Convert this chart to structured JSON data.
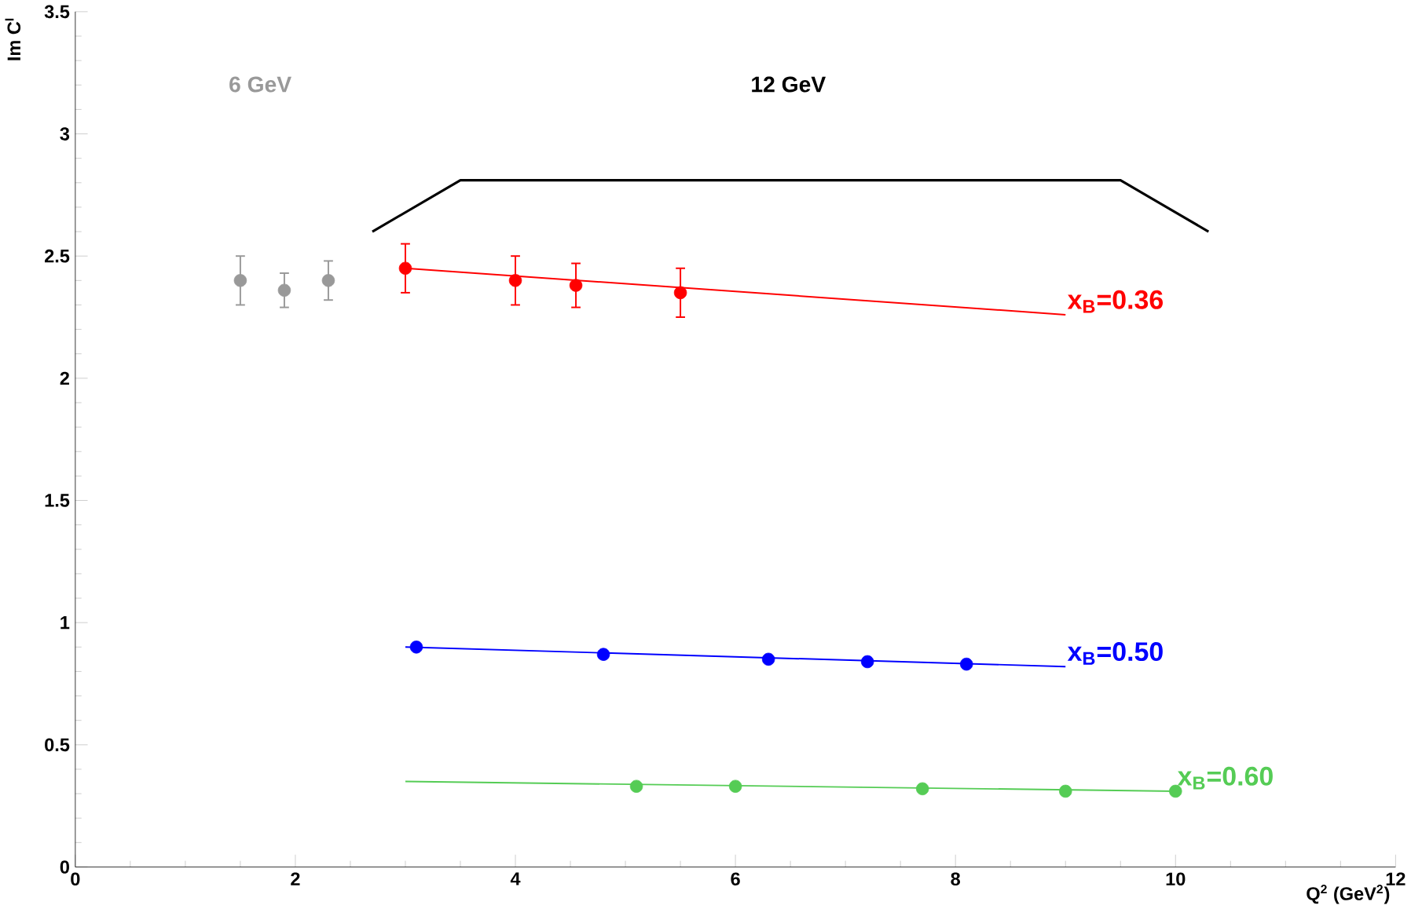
{
  "chart_data": {
    "type": "scatter",
    "xlabel": "Q$^{2}$ (GeV$^{2}$)",
    "ylabel": "Im C$^{I}$",
    "xlim": [
      0,
      12
    ],
    "ylim": [
      0,
      3.5
    ],
    "xticks": [
      0,
      2,
      4,
      6,
      8,
      10,
      12
    ],
    "yticks": [
      0,
      0.5,
      1,
      1.5,
      2,
      2.5,
      3,
      3.5
    ],
    "grid": false,
    "legend": false,
    "annotations": [
      "6 GeV",
      "12 GeV"
    ],
    "series": [
      {
        "type": "line",
        "marker": "none",
        "color": "#000000",
        "x": [
          2.7,
          3.5,
          9.5,
          10.3
        ],
        "values": [
          2.6,
          2.81,
          2.81,
          2.6
        ]
      },
      {
        "marker": "circle",
        "color": "#999999",
        "x": [
          1.5,
          1.9,
          2.3
        ],
        "values": [
          2.4,
          2.36,
          2.4
        ],
        "errors": [
          0.1,
          0.07,
          0.08
        ]
      },
      {
        "marker": "circle",
        "color": "#ff0000",
        "x": [
          3.0,
          4.0,
          4.55,
          5.5
        ],
        "values": [
          2.45,
          2.4,
          2.38,
          2.35
        ],
        "errors": [
          0.1,
          0.1,
          0.09,
          0.1
        ]
      },
      {
        "type": "line",
        "marker": "none",
        "name": "x$_{B}$=0.36",
        "color": "#ff0000",
        "x": [
          3,
          9
        ],
        "values": [
          2.45,
          2.26
        ]
      },
      {
        "marker": "circle",
        "color": "#0000ff",
        "x": [
          3.1,
          4.8,
          6.3,
          7.2,
          8.1
        ],
        "values": [
          0.9,
          0.87,
          0.85,
          0.84,
          0.83
        ]
      },
      {
        "type": "line",
        "marker": "none",
        "name": "x$_{B}$=0.50",
        "color": "#0000ff",
        "x": [
          3,
          9
        ],
        "values": [
          0.9,
          0.82
        ]
      },
      {
        "marker": "circle",
        "color": "#55cc55",
        "x": [
          5.1,
          6.0,
          7.7,
          9.0,
          10.0
        ],
        "values": [
          0.33,
          0.33,
          0.32,
          0.31,
          0.31
        ]
      },
      {
        "type": "line",
        "marker": "none",
        "name": "x$_{B}$=0.60",
        "color": "#55cc55",
        "x": [
          3,
          10
        ],
        "values": [
          0.35,
          0.31
        ]
      }
    ]
  }
}
